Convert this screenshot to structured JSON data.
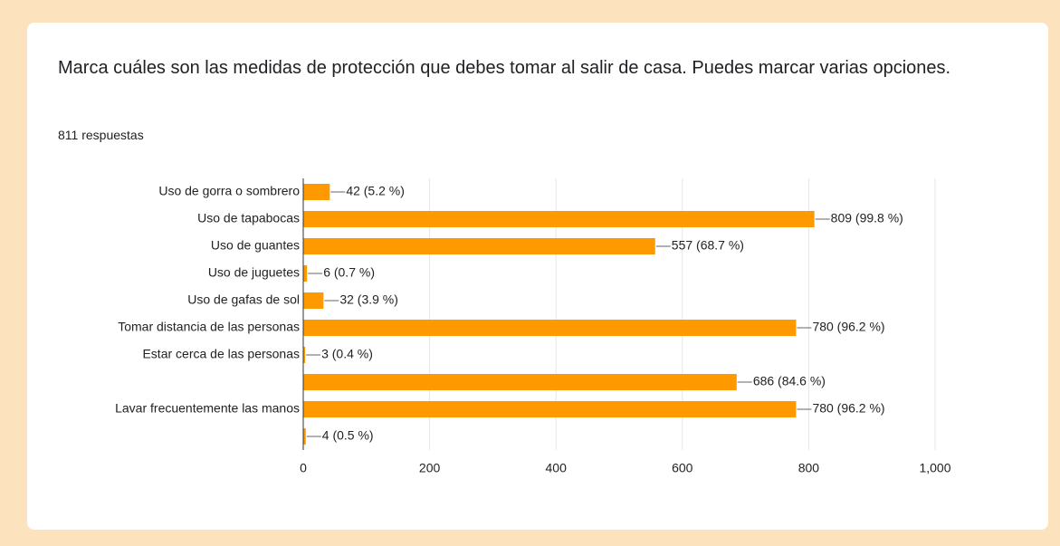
{
  "chart_data": {
    "type": "bar",
    "orientation": "horizontal",
    "title": "Marca cuáles son las medidas de protección que debes tomar al salir de casa. Puedes marcar varias opciones.",
    "subtitle": "811 respuestas",
    "categories": [
      "Uso de gorra o sombrero",
      "Uso de tapabocas",
      "Uso de guantes",
      "Uso de juguetes",
      "Uso de gafas de sol",
      "Tomar distancia de las personas",
      "Estar cerca de las personas",
      null,
      "Lavar frecuentemente las manos",
      null
    ],
    "values": [
      42,
      809,
      557,
      6,
      32,
      780,
      3,
      686,
      780,
      4
    ],
    "value_labels": [
      "42 (5.2 %)",
      "809 (99.8 %)",
      "557 (68.7 %)",
      "6 (0.7 %)",
      "32 (3.9 %)",
      "780 (96.2 %)",
      "3 (0.4 %)",
      "686 (84.6 %)",
      "780 (96.2 %)",
      "4 (0.5 %)"
    ],
    "color": "#ff9900",
    "xlim": [
      0,
      1000
    ],
    "xticks": [
      0,
      200,
      400,
      600,
      800,
      {
        "value": 1000,
        "label": "1,000"
      }
    ],
    "grid": true
  }
}
